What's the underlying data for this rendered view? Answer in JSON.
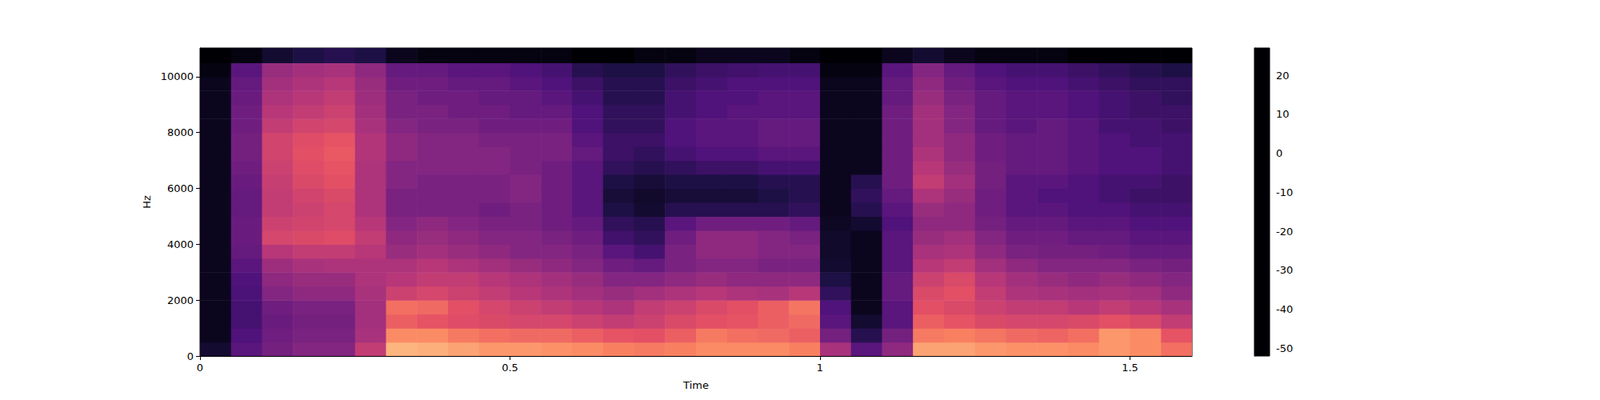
{
  "chart_data": {
    "type": "heatmap",
    "x_label": "Time",
    "y_label": "Hz",
    "xlim": [
      0,
      1.6
    ],
    "xticks": [
      0,
      0.5,
      1,
      1.5
    ],
    "ylim": [
      0,
      11025
    ],
    "yticks": [
      0,
      2000,
      4000,
      6000,
      8000,
      10000
    ],
    "grid": false,
    "color": "magma",
    "x_bins": [
      0,
      0.05,
      0.1,
      0.15,
      0.2,
      0.25,
      0.3,
      0.35,
      0.4,
      0.45,
      0.5,
      0.55,
      0.6,
      0.65,
      0.7,
      0.75,
      0.8,
      0.85,
      0.9,
      0.95,
      1.0,
      1.05,
      1.1,
      1.15,
      1.2,
      1.25,
      1.3,
      1.35,
      1.4,
      1.45,
      1.5,
      1.55,
      1.6
    ],
    "y_bins": [
      0,
      500,
      1000,
      1500,
      2000,
      2500,
      3000,
      3500,
      4000,
      4500,
      5000,
      5500,
      6000,
      6500,
      7000,
      7500,
      8000,
      8500,
      9000,
      9500,
      10000,
      10500,
      11025
    ],
    "cells": [
      [
        -45,
        -30,
        -25,
        -22,
        -22,
        -10,
        15,
        14,
        12,
        10,
        10,
        9,
        8,
        6,
        5,
        6,
        8,
        8,
        8,
        6,
        -15,
        -30,
        -20,
        12,
        12,
        10,
        9,
        9,
        8,
        10,
        8,
        3
      ],
      [
        -48,
        -32,
        -26,
        -24,
        -24,
        -15,
        8,
        8,
        5,
        3,
        2,
        2,
        0,
        -2,
        -3,
        0,
        5,
        3,
        2,
        0,
        -25,
        -40,
        -25,
        5,
        6,
        4,
        2,
        1,
        3,
        10,
        8,
        -2
      ],
      [
        -48,
        -34,
        -27,
        -25,
        -25,
        -16,
        0,
        -2,
        -4,
        -5,
        -6,
        -6,
        -8,
        -10,
        -8,
        -5,
        -3,
        -2,
        0,
        2,
        -30,
        -45,
        -30,
        0,
        -2,
        -5,
        -6,
        -6,
        -5,
        -3,
        -5,
        -10
      ],
      [
        -48,
        -34,
        -26,
        -24,
        -24,
        -16,
        3,
        2,
        -3,
        -6,
        -8,
        -10,
        -12,
        -14,
        -10,
        -8,
        -5,
        -3,
        0,
        4,
        -32,
        -48,
        -30,
        -3,
        -5,
        -8,
        -10,
        -10,
        -12,
        -10,
        -12,
        -15
      ],
      [
        -48,
        -33,
        -22,
        -20,
        -20,
        -15,
        -8,
        -6,
        -8,
        -10,
        -12,
        -14,
        -16,
        -18,
        -16,
        -14,
        -12,
        -14,
        -15,
        -12,
        -38,
        -48,
        -28,
        -5,
        -3,
        -10,
        -14,
        -15,
        -16,
        -15,
        -16,
        -20
      ],
      [
        -48,
        -32,
        -20,
        -18,
        -18,
        -14,
        -12,
        -10,
        -10,
        -12,
        -14,
        -16,
        -18,
        -22,
        -22,
        -20,
        -18,
        -20,
        -20,
        -20,
        -42,
        -48,
        -28,
        -8,
        -5,
        -12,
        -16,
        -18,
        -20,
        -18,
        -20,
        -22
      ],
      [
        -48,
        -30,
        -17,
        -15,
        -14,
        -14,
        -14,
        -12,
        -14,
        -16,
        -18,
        -20,
        -22,
        -26,
        -28,
        -24,
        -22,
        -22,
        -24,
        -24,
        -45,
        -48,
        -30,
        -12,
        -10,
        -16,
        -20,
        -22,
        -22,
        -22,
        -24,
        -25
      ],
      [
        -48,
        -28,
        -12,
        -10,
        -10,
        -12,
        -18,
        -16,
        -18,
        -20,
        -22,
        -22,
        -24,
        -30,
        -34,
        -24,
        -20,
        -20,
        -22,
        -22,
        -46,
        -48,
        -30,
        -15,
        -14,
        -20,
        -24,
        -25,
        -25,
        -26,
        -28,
        -28
      ],
      [
        -48,
        -27,
        -6,
        -5,
        -4,
        -10,
        -20,
        -18,
        -20,
        -22,
        -22,
        -24,
        -26,
        -35,
        -38,
        -26,
        -20,
        -20,
        -22,
        -24,
        -46,
        -48,
        -30,
        -18,
        -16,
        -22,
        -26,
        -26,
        -28,
        -28,
        -30,
        -30
      ],
      [
        -48,
        -27,
        -8,
        -7,
        -6,
        -12,
        -22,
        -20,
        -22,
        -24,
        -24,
        -26,
        -28,
        -38,
        -40,
        -30,
        -26,
        -26,
        -26,
        -28,
        -47,
        -45,
        -32,
        -20,
        -20,
        -25,
        -28,
        -28,
        -30,
        -30,
        -32,
        -32
      ],
      [
        -48,
        -28,
        -10,
        -8,
        -6,
        -14,
        -24,
        -24,
        -24,
        -26,
        -24,
        -26,
        -30,
        -42,
        -45,
        -40,
        -40,
        -40,
        -40,
        -38,
        -48,
        -40,
        -30,
        -18,
        -20,
        -26,
        -30,
        -30,
        -32,
        -32,
        -34,
        -34
      ],
      [
        -48,
        -28,
        -10,
        -7,
        -5,
        -14,
        -24,
        -24,
        -24,
        -24,
        -22,
        -26,
        -30,
        -44,
        -46,
        -44,
        -44,
        -44,
        -42,
        -40,
        -48,
        -38,
        -28,
        -14,
        -18,
        -26,
        -30,
        -32,
        -32,
        -34,
        -36,
        -36
      ],
      [
        -48,
        -27,
        -9,
        -5,
        -3,
        -14,
        -22,
        -24,
        -24,
        -24,
        -22,
        -26,
        -30,
        -42,
        -44,
        -42,
        -42,
        -42,
        -40,
        -40,
        -48,
        -40,
        -26,
        -10,
        -16,
        -25,
        -30,
        -30,
        -32,
        -34,
        -34,
        -36
      ],
      [
        -48,
        -26,
        -8,
        -4,
        -2,
        -14,
        -22,
        -22,
        -22,
        -22,
        -24,
        -26,
        -30,
        -38,
        -40,
        -38,
        -36,
        -36,
        -34,
        -34,
        -48,
        -48,
        -26,
        -12,
        -18,
        -25,
        -28,
        -28,
        -30,
        -32,
        -32,
        -34
      ],
      [
        -48,
        -25,
        -7,
        -3,
        -1,
        -13,
        -20,
        -22,
        -22,
        -22,
        -24,
        -24,
        -28,
        -36,
        -38,
        -34,
        -32,
        -32,
        -30,
        -30,
        -48,
        -48,
        -26,
        -14,
        -20,
        -26,
        -28,
        -28,
        -30,
        -32,
        -32,
        -34
      ],
      [
        -48,
        -25,
        -7,
        -4,
        -2,
        -13,
        -20,
        -22,
        -22,
        -24,
        -24,
        -24,
        -30,
        -36,
        -36,
        -32,
        -30,
        -30,
        -28,
        -28,
        -48,
        -48,
        -26,
        -16,
        -20,
        -26,
        -28,
        -28,
        -30,
        -32,
        -34,
        -34
      ],
      [
        -48,
        -26,
        -10,
        -7,
        -6,
        -15,
        -22,
        -24,
        -24,
        -26,
        -26,
        -26,
        -32,
        -38,
        -38,
        -32,
        -30,
        -30,
        -28,
        -28,
        -48,
        -48,
        -26,
        -16,
        -22,
        -28,
        -30,
        -28,
        -30,
        -34,
        -34,
        -36
      ],
      [
        -48,
        -26,
        -12,
        -10,
        -8,
        -16,
        -24,
        -24,
        -26,
        -26,
        -28,
        -28,
        -32,
        -38,
        -38,
        -34,
        -32,
        -30,
        -30,
        -30,
        -48,
        -48,
        -26,
        -16,
        -22,
        -28,
        -30,
        -30,
        -32,
        -34,
        -36,
        -36
      ],
      [
        -48,
        -27,
        -14,
        -12,
        -10,
        -17,
        -24,
        -26,
        -26,
        -28,
        -28,
        -30,
        -34,
        -40,
        -40,
        -34,
        -32,
        -32,
        -30,
        -30,
        -48,
        -48,
        -28,
        -18,
        -24,
        -28,
        -30,
        -30,
        -32,
        -34,
        -36,
        -38
      ],
      [
        -48,
        -28,
        -16,
        -14,
        -12,
        -18,
        -26,
        -26,
        -28,
        -28,
        -30,
        -32,
        -36,
        -40,
        -40,
        -36,
        -34,
        -32,
        -32,
        -32,
        -48,
        -48,
        -28,
        -20,
        -26,
        -30,
        -32,
        -32,
        -34,
        -36,
        -38,
        -38
      ],
      [
        -50,
        -30,
        -18,
        -16,
        -15,
        -20,
        -28,
        -28,
        -30,
        -30,
        -32,
        -34,
        -40,
        -42,
        -42,
        -38,
        -36,
        -35,
        -34,
        -34,
        -50,
        -50,
        -30,
        -22,
        -28,
        -32,
        -34,
        -34,
        -36,
        -38,
        -40,
        -42
      ],
      [
        -52,
        -50,
        -45,
        -42,
        -40,
        -42,
        -48,
        -50,
        -50,
        -50,
        -50,
        -50,
        -52,
        -52,
        -50,
        -50,
        -48,
        -48,
        -48,
        -50,
        -52,
        -52,
        -48,
        -45,
        -48,
        -50,
        -50,
        -50,
        -52,
        -52,
        -52,
        -52
      ]
    ],
    "colorbar": {
      "range": [
        -52,
        27
      ],
      "ticks": [
        -50,
        -40,
        -30,
        -20,
        -10,
        0,
        10,
        20
      ]
    }
  }
}
